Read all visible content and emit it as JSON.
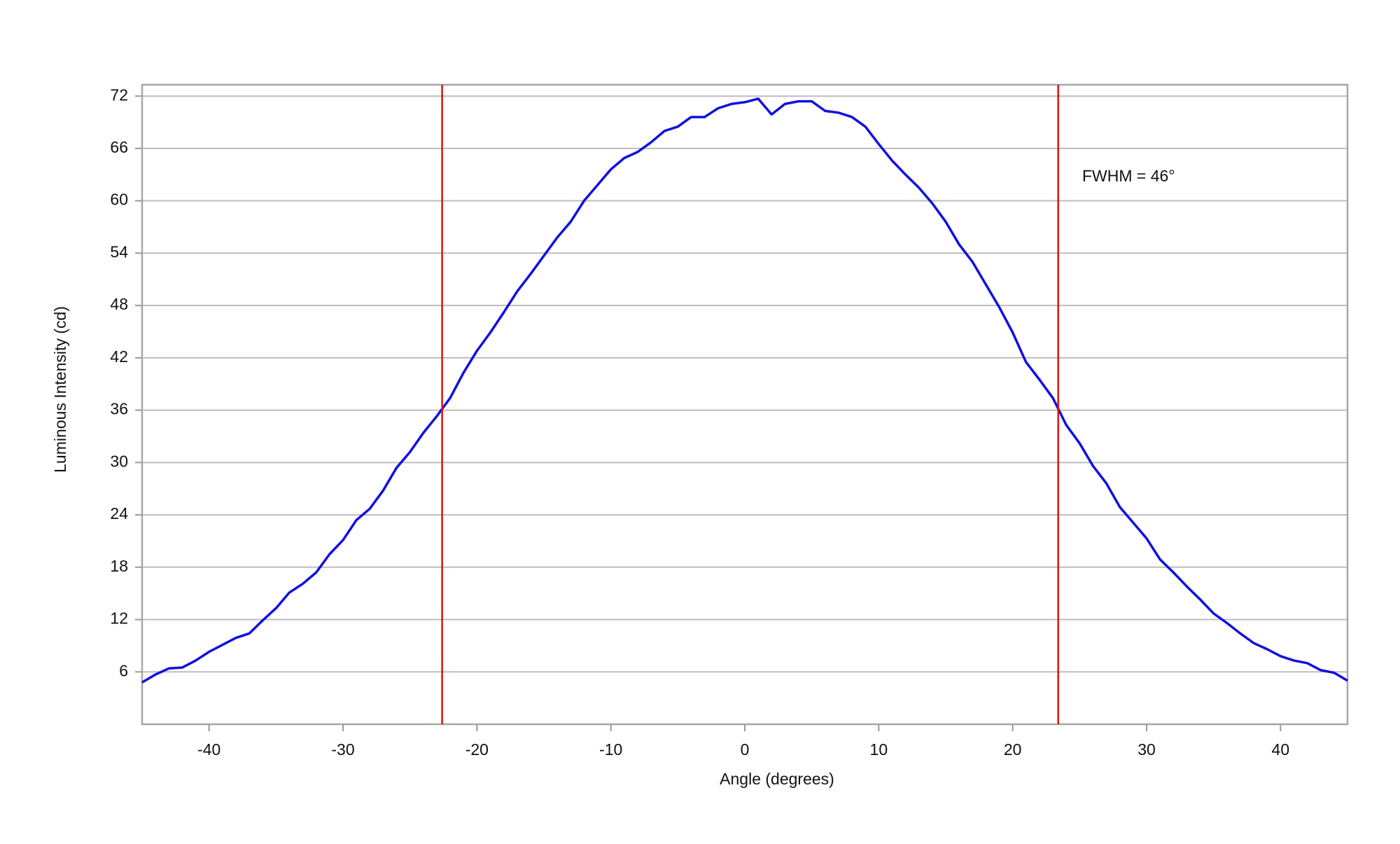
{
  "chart_data": {
    "type": "line",
    "xlabel": "Angle (degrees)",
    "ylabel": "Luminous Intensity (cd)",
    "annotation": "FWHM = 46°",
    "x": [
      -45,
      -44,
      -43,
      -42,
      -41,
      -40,
      -39,
      -38,
      -37,
      -36,
      -35,
      -34,
      -33,
      -32,
      -31,
      -30,
      -29,
      -28,
      -27,
      -26,
      -25,
      -24,
      -23,
      -22,
      -21,
      -20,
      -19,
      -18,
      -17,
      -16,
      -15,
      -14,
      -13,
      -12,
      -11,
      -10,
      -9,
      -8,
      -7,
      -6,
      -5,
      -4,
      -3,
      -2,
      -1,
      0,
      1,
      2,
      3,
      4,
      5,
      6,
      7,
      8,
      9,
      10,
      11,
      12,
      13,
      14,
      15,
      16,
      17,
      18,
      19,
      20,
      21,
      22,
      23,
      24,
      25,
      26,
      27,
      28,
      29,
      30,
      31,
      32,
      33,
      34,
      35,
      36,
      37,
      38,
      39,
      40,
      41,
      42,
      43,
      44,
      45
    ],
    "series": [
      {
        "color": "#1010e0",
        "values": [
          4.8,
          5.7,
          6.4,
          6.5,
          7.3,
          8.3,
          9.1,
          9.9,
          10.4,
          11.9,
          13.3,
          15.1,
          16.1,
          17.4,
          19.5,
          21.1,
          23.4,
          24.7,
          26.8,
          29.4,
          31.2,
          33.4,
          35.3,
          37.4,
          40.3,
          42.8,
          44.9,
          47.2,
          49.6,
          51.6,
          53.7,
          55.8,
          57.6,
          60.0,
          61.8,
          63.6,
          64.9,
          65.6,
          66.7,
          68.0,
          68.5,
          69.6,
          69.6,
          70.6,
          71.1,
          71.3,
          71.7,
          69.9,
          71.1,
          71.4,
          71.4,
          70.3,
          70.1,
          69.6,
          68.5,
          66.5,
          64.6,
          63.0,
          61.5,
          59.7,
          57.6,
          55.0,
          53.0,
          50.4,
          47.8,
          44.9,
          41.5,
          39.5,
          37.4,
          34.3,
          32.2,
          29.6,
          27.6,
          24.9,
          23.1,
          21.3,
          18.9,
          17.4,
          15.8,
          14.3,
          12.7,
          11.6,
          10.4,
          9.3,
          8.6,
          7.8,
          7.3,
          7.0,
          6.2,
          5.9,
          5.0
        ]
      }
    ],
    "vlines": [
      -22.6,
      23.4
    ],
    "vline_color": "#e01010",
    "xlim": [
      -45,
      45
    ],
    "ylim": [
      0,
      73.3
    ],
    "xticks": [
      -40,
      -30,
      -20,
      -10,
      0,
      10,
      20,
      30,
      40
    ],
    "yticks": [
      6,
      12,
      18,
      24,
      30,
      36,
      42,
      48,
      54,
      60,
      66,
      72
    ],
    "grid": true
  }
}
